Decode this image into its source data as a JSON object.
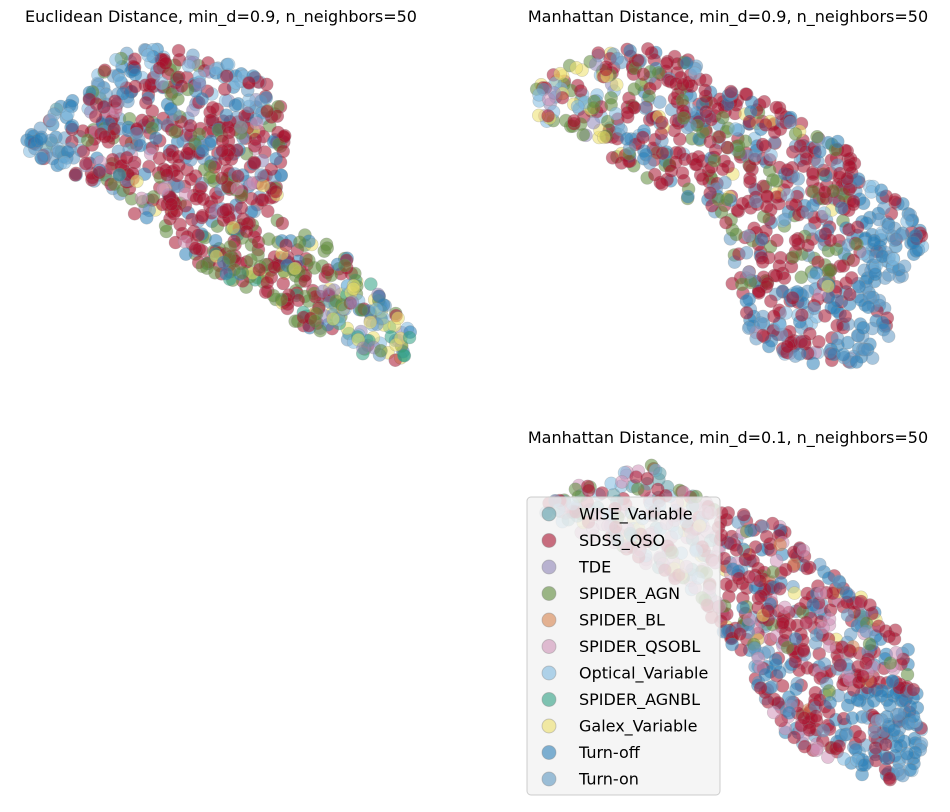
{
  "colors": {
    "WISE_Variable": "#5e9fa8",
    "SDSS_QSO": "#a8132e",
    "TDE": "#8f86b8",
    "SPIDER_AGN": "#5e8a3a",
    "SPIDER_BL": "#d7844e",
    "SPIDER_QSOBL": "#cf92b8",
    "Optical_Variable": "#7fb9e0",
    "SPIDER_AGNBL": "#2ea083",
    "Galex_Variable": "#ece06a",
    "Turn-off": "#2b7fb8",
    "Turn-on": "#5e98c2"
  },
  "legend": {
    "placement": "lower-left of bottom-right panel",
    "entries": [
      "WISE_Variable",
      "SDSS_QSO",
      "TDE",
      "SPIDER_AGN",
      "SPIDER_BL",
      "SPIDER_QSOBL",
      "Optical_Variable",
      "SPIDER_AGNBL",
      "Galex_Variable",
      "Turn-off",
      "Turn-on"
    ]
  },
  "chart_data": [
    {
      "type": "scatter",
      "title": "Euclidean Distance, min_d=0.9, n_neighbors=50",
      "axes": "off",
      "grid": false,
      "categories": [
        "WISE_Variable",
        "SDSS_QSO",
        "TDE",
        "SPIDER_AGN",
        "SPIDER_BL",
        "SPIDER_QSOBL",
        "Optical_Variable",
        "SPIDER_AGNBL",
        "Galex_Variable",
        "Turn-off",
        "Turn-on"
      ],
      "dominant_categories": [
        "SDSS_QSO",
        "Turn-off",
        "Turn-on",
        "SPIDER_AGN",
        "Optical_Variable"
      ]
    },
    {
      "type": "scatter",
      "title": "Manhattan Distance, min_d=0.9, n_neighbors=50",
      "axes": "off",
      "grid": false,
      "categories": [
        "WISE_Variable",
        "SDSS_QSO",
        "TDE",
        "SPIDER_AGN",
        "SPIDER_BL",
        "SPIDER_QSOBL",
        "Optical_Variable",
        "SPIDER_AGNBL",
        "Galex_Variable",
        "Turn-off",
        "Turn-on"
      ],
      "dominant_categories": [
        "SDSS_QSO",
        "Turn-off",
        "Turn-on",
        "SPIDER_AGN",
        "Galex_Variable"
      ]
    },
    {
      "type": "scatter",
      "title": "Manhattan Distance, min_d=0.1, n_neighbors=50",
      "axes": "off",
      "grid": false,
      "categories": [
        "WISE_Variable",
        "SDSS_QSO",
        "TDE",
        "SPIDER_AGN",
        "SPIDER_BL",
        "SPIDER_QSOBL",
        "Optical_Variable",
        "SPIDER_AGNBL",
        "Galex_Variable",
        "Turn-off",
        "Turn-on"
      ],
      "dominant_categories": [
        "SDSS_QSO",
        "Turn-off",
        "Turn-on",
        "SPIDER_QSOBL",
        "SPIDER_AGN"
      ]
    }
  ]
}
